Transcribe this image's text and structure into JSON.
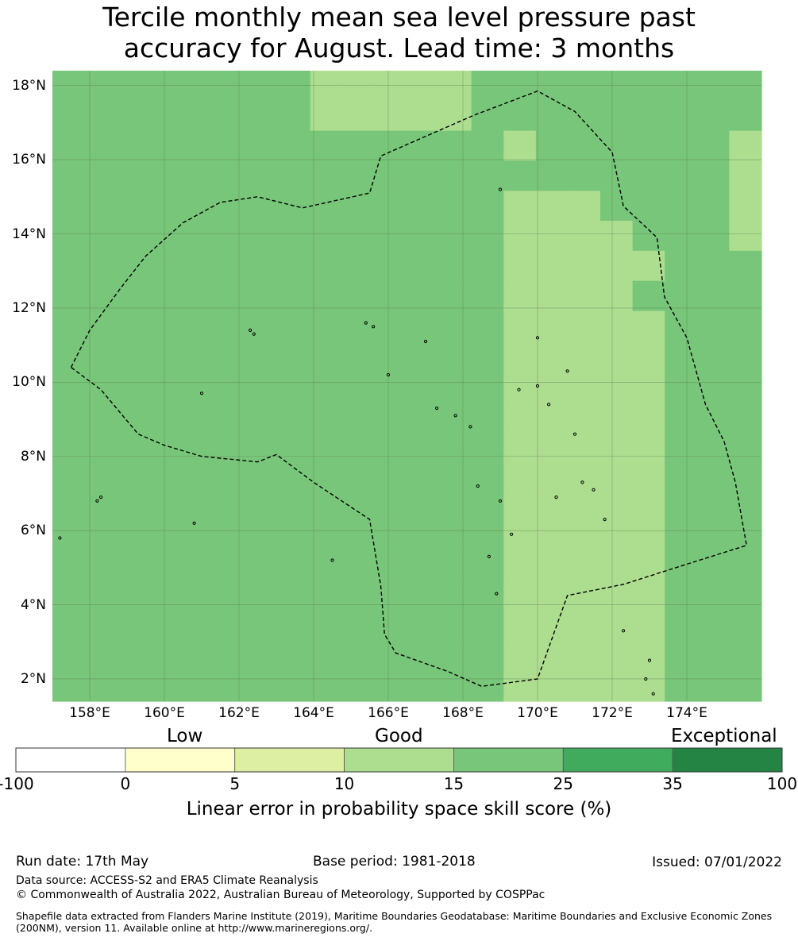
{
  "title": {
    "line1": "Tercile monthly mean sea level pressure past",
    "line2": "accuracy for August. Lead time: 3 months"
  },
  "map": {
    "lat_range": [
      1.4,
      18.4
    ],
    "lon_range": [
      157.0,
      176.0
    ],
    "lat_ticks": [
      {
        "value": 18,
        "label": "18°N"
      },
      {
        "value": 16,
        "label": "16°N"
      },
      {
        "value": 14,
        "label": "14°N"
      },
      {
        "value": 12,
        "label": "12°N"
      },
      {
        "value": 10,
        "label": "10°N"
      },
      {
        "value": 8,
        "label": "8°N"
      },
      {
        "value": 6,
        "label": "6°N"
      },
      {
        "value": 4,
        "label": "4°N"
      },
      {
        "value": 2,
        "label": "2°N"
      }
    ],
    "lon_ticks": [
      {
        "value": 158,
        "label": "158°E"
      },
      {
        "value": 160,
        "label": "160°E"
      },
      {
        "value": 162,
        "label": "162°E"
      },
      {
        "value": 164,
        "label": "164°E"
      },
      {
        "value": 166,
        "label": "166°E"
      },
      {
        "value": 168,
        "label": "168°E"
      },
      {
        "value": 170,
        "label": "170°E"
      },
      {
        "value": 172,
        "label": "172°E"
      },
      {
        "value": 174,
        "label": "174°E"
      }
    ],
    "colors": {
      "c1": "#dcefa2",
      "c2": "#addd8e",
      "c3": "#78c679",
      "grid": "#5a6f50",
      "boundary": "#000000"
    },
    "skill_grid_categories": [
      "3333333322222333333333",
      "3333333322222333333333",
      "3333333333333323333332",
      "3333333333333333333332",
      "3333333333333322233332",
      "3333333333333322223332",
      "3333333333333322222333",
      "3333333333333322223333",
      "3333333333333322222333",
      "3333333333333322222333",
      "3333333333333322222333",
      "3333333333333322222333",
      "3333333333333322222333",
      "3333333333333322222333",
      "3333333333333322222333",
      "3333333333333322222333",
      "3333333333333322222333",
      "3333333333333322222333",
      "3333333333333322222333",
      "3333333333333322222333",
      "3333333333333322222333"
    ],
    "eez_boundary": [
      [
        157.5,
        10.4
      ],
      [
        158.0,
        11.4
      ],
      [
        158.8,
        12.5
      ],
      [
        159.5,
        13.4
      ],
      [
        160.5,
        14.3
      ],
      [
        161.5,
        14.85
      ],
      [
        162.5,
        15.0
      ],
      [
        163.7,
        14.7
      ],
      [
        165.5,
        15.1
      ],
      [
        165.8,
        16.1
      ],
      [
        168.3,
        17.2
      ],
      [
        170.0,
        17.85
      ],
      [
        171.0,
        17.3
      ],
      [
        172.0,
        16.2
      ],
      [
        172.3,
        14.75
      ],
      [
        173.2,
        13.9
      ],
      [
        173.4,
        12.3
      ],
      [
        174.0,
        11.2
      ],
      [
        174.5,
        9.4
      ],
      [
        175.0,
        8.4
      ],
      [
        175.3,
        7.3
      ],
      [
        175.6,
        5.6
      ],
      [
        173.7,
        5.0
      ],
      [
        172.3,
        4.55
      ],
      [
        170.8,
        4.25
      ],
      [
        170.0,
        2.0
      ],
      [
        168.5,
        1.8
      ],
      [
        167.6,
        2.2
      ],
      [
        166.2,
        2.7
      ],
      [
        165.9,
        3.2
      ],
      [
        165.8,
        4.5
      ],
      [
        165.5,
        6.3
      ],
      [
        164.0,
        7.3
      ],
      [
        163.0,
        8.05
      ],
      [
        162.5,
        7.85
      ],
      [
        161.0,
        8.0
      ],
      [
        160.0,
        8.3
      ],
      [
        159.3,
        8.6
      ],
      [
        158.8,
        9.2
      ],
      [
        158.3,
        9.8
      ],
      [
        157.5,
        10.4
      ]
    ],
    "islands": [
      [
        157.2,
        5.8
      ],
      [
        158.2,
        6.8
      ],
      [
        158.3,
        6.9
      ],
      [
        160.8,
        6.2
      ],
      [
        161.0,
        9.7
      ],
      [
        162.3,
        11.4
      ],
      [
        162.4,
        11.3
      ],
      [
        164.5,
        5.2
      ],
      [
        165.4,
        11.6
      ],
      [
        165.6,
        11.5
      ],
      [
        166.0,
        10.2
      ],
      [
        167.0,
        11.1
      ],
      [
        167.3,
        9.3
      ],
      [
        167.8,
        9.1
      ],
      [
        168.2,
        8.8
      ],
      [
        168.4,
        7.2
      ],
      [
        168.7,
        5.3
      ],
      [
        168.9,
        4.3
      ],
      [
        169.0,
        6.8
      ],
      [
        169.3,
        5.9
      ],
      [
        169.5,
        9.8
      ],
      [
        170.0,
        9.9
      ],
      [
        170.3,
        9.4
      ],
      [
        170.5,
        6.9
      ],
      [
        171.0,
        8.6
      ],
      [
        171.2,
        7.3
      ],
      [
        171.5,
        7.1
      ],
      [
        171.8,
        6.3
      ],
      [
        172.3,
        3.3
      ],
      [
        172.9,
        2.0
      ],
      [
        173.0,
        2.5
      ],
      [
        173.1,
        1.6
      ],
      [
        169.0,
        15.2
      ],
      [
        170.0,
        11.2
      ],
      [
        170.8,
        10.3
      ]
    ]
  },
  "colorbar": {
    "category_labels": {
      "low": "Low",
      "good": "Good",
      "exceptional": "Exceptional"
    },
    "ticks": [
      "-100",
      "0",
      "5",
      "10",
      "15",
      "25",
      "35",
      "100"
    ],
    "colors": [
      "#ffffff",
      "#ffffcc",
      "#dcefa2",
      "#addd8e",
      "#78c679",
      "#41ab5d",
      "#238443"
    ],
    "label": "Linear error in probability space skill score (%)"
  },
  "footer": {
    "run_date": "Run date: 17th May",
    "base_period": "Base period: 1981-2018",
    "issued": "Issued: 07/01/2022",
    "data_source": "Data source: ACCESS-S2 and ERA5 Climate Reanalysis",
    "copyright": "© Commonwealth of Australia 2022, Australian Bureau of Meteorology, Supported by COSPPac",
    "shapefile": "Shapefile data extracted from Flanders Marine Institute (2019), Maritime Boundaries Geodatabase: Maritime Boundaries and Exclusive Economic Zones (200NM), version 11. Available online at http://www.marineregions.org/."
  }
}
